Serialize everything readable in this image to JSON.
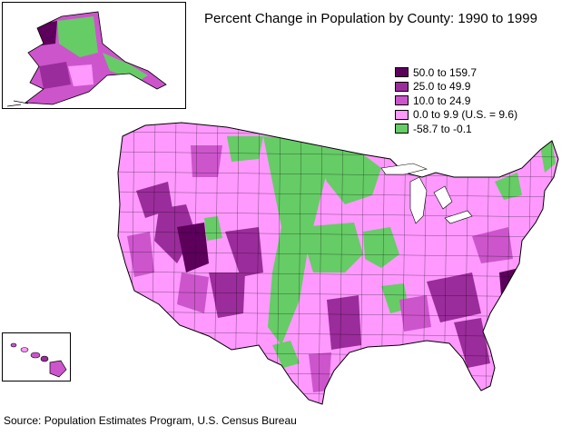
{
  "title": "Percent Change in Population by County: 1990 to 1999",
  "source": "Source: Population Estimates Program, U.S. Census Bureau",
  "legend": [
    {
      "label": "50.0 to 159.7",
      "color": "#5c005c"
    },
    {
      "label": "25.0 to 49.9",
      "color": "#9b2c9b"
    },
    {
      "label": "10.0 to 24.9",
      "color": "#cc55cc"
    },
    {
      "label": "0.0 to 9.9 (U.S. = 9.6)",
      "color": "#ff99ff"
    },
    {
      "label": "-58.7 to -0.1",
      "color": "#66cc66"
    }
  ],
  "regions": {
    "contiguous": "Contiguous United States",
    "alaska": "Alaska",
    "hawaii": "Hawaii"
  }
}
